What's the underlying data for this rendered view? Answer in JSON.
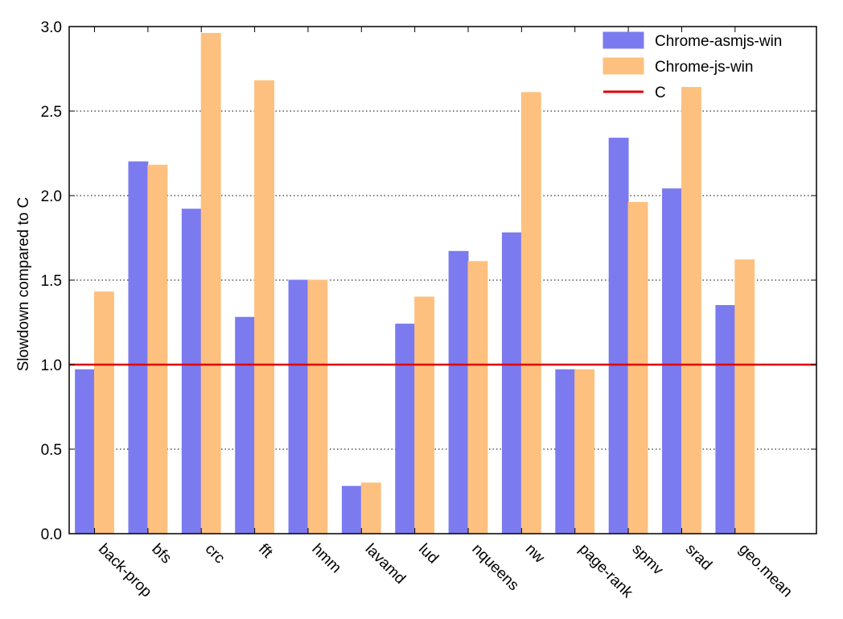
{
  "chart_data": {
    "type": "bar",
    "categories": [
      "back-prop",
      "bfs",
      "crc",
      "fft",
      "hmm",
      "lavamd",
      "lud",
      "nqueens",
      "nw",
      "page-rank",
      "spmv",
      "srad",
      "geo.mean"
    ],
    "series": [
      {
        "name": "Chrome-asmjs-win",
        "color": "#7b7bef",
        "values": [
          0.97,
          2.2,
          1.92,
          1.28,
          1.5,
          0.28,
          1.24,
          1.67,
          1.78,
          0.97,
          2.34,
          2.04,
          1.35
        ]
      },
      {
        "name": "Chrome-js-win",
        "color": "#fec07e",
        "values": [
          1.43,
          2.18,
          2.96,
          2.68,
          1.5,
          0.3,
          1.4,
          1.61,
          2.61,
          0.97,
          1.96,
          2.64,
          1.62
        ]
      }
    ],
    "reference_line": {
      "name": "C",
      "value": 1.0,
      "color": "#e00000"
    },
    "title": "",
    "xlabel": "",
    "ylabel": "Slowdown compared to C",
    "ylim": [
      0,
      3.0
    ],
    "yticks": [
      "0.0",
      "0.5",
      "1.0",
      "1.5",
      "2.0",
      "2.5",
      "3.0"
    ],
    "grid": "horizontal-dotted",
    "legend_position": "top-right"
  }
}
